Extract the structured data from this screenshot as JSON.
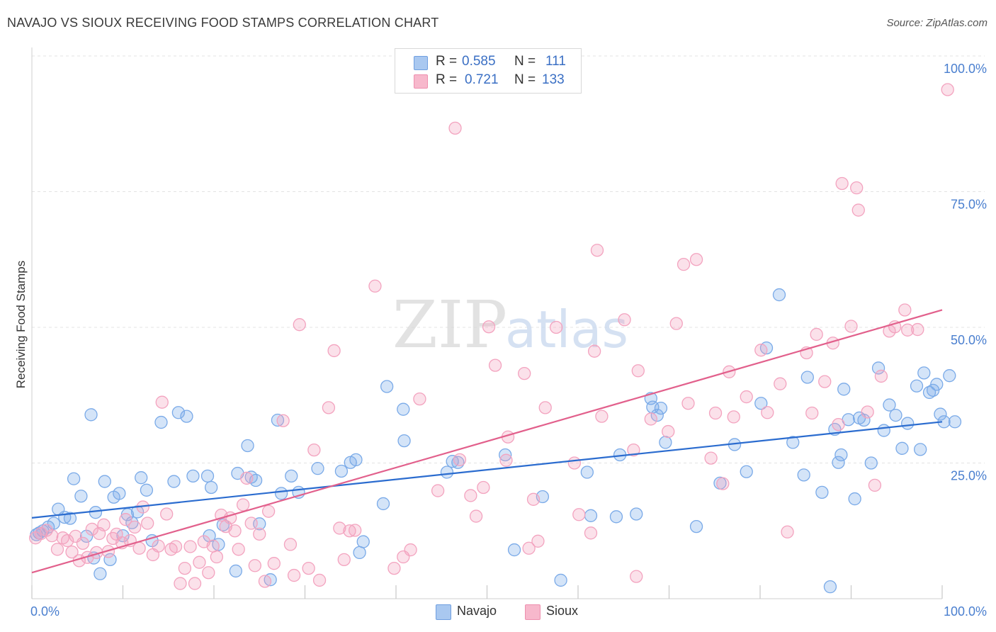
{
  "title": "NAVAJO VS SIOUX RECEIVING FOOD STAMPS CORRELATION CHART",
  "source": "Source: ZipAtlas.com",
  "watermark": {
    "zip": "ZIP",
    "atlas": "atlas"
  },
  "stats": [
    {
      "r_label": "R =",
      "r_value": "0.585",
      "n_label": "N =",
      "n_value": "111",
      "color": "#a9c8f0",
      "border": "#6f9fe0"
    },
    {
      "r_label": "R =",
      "r_value": "0.721",
      "n_label": "N =",
      "n_value": "133",
      "color": "#f7b8cc",
      "border": "#ee8fae"
    }
  ],
  "legend": [
    {
      "label": "Navajo",
      "color": "#a9c8f0",
      "border": "#6f9fe0"
    },
    {
      "label": "Sioux",
      "color": "#f7b8cc",
      "border": "#ee8fae"
    }
  ],
  "chart_data": {
    "type": "scatter",
    "title": "NAVAJO VS SIOUX RECEIVING FOOD STAMPS CORRELATION CHART",
    "xlabel": "",
    "ylabel": "Receiving Food Stamps",
    "xlim": [
      0,
      100
    ],
    "ylim": [
      0,
      100
    ],
    "x_tick_labels": [
      {
        "value": 0,
        "label": "0.0%"
      },
      {
        "value": 100,
        "label": "100.0%"
      }
    ],
    "y_tick_labels": [
      {
        "value": 25,
        "label": "25.0%"
      },
      {
        "value": 50,
        "label": "50.0%"
      },
      {
        "value": 75,
        "label": "75.0%"
      },
      {
        "value": 100,
        "label": "100.0%"
      }
    ],
    "grid": true,
    "legend_position": "bottom",
    "series": [
      {
        "name": "Navajo",
        "color": "#7aaae8",
        "trend_color": "#2b6ccf",
        "trend": [
          [
            0,
            14.9
          ],
          [
            100,
            32.6
          ]
        ],
        "points": [
          [
            0.5,
            11.8
          ],
          [
            1.2,
            12.5
          ],
          [
            1.8,
            13.2
          ],
          [
            2.4,
            13.9
          ],
          [
            2.9,
            16.5
          ],
          [
            3.6,
            15.0
          ],
          [
            4.2,
            14.8
          ],
          [
            4.6,
            22.1
          ],
          [
            5.4,
            18.9
          ],
          [
            6.0,
            11.5
          ],
          [
            6.5,
            33.9
          ],
          [
            6.8,
            7.5
          ],
          [
            7.0,
            15.9
          ],
          [
            7.5,
            4.6
          ],
          [
            8.0,
            21.6
          ],
          [
            8.6,
            7.2
          ],
          [
            9.0,
            18.7
          ],
          [
            9.6,
            19.4
          ],
          [
            10.0,
            11.6
          ],
          [
            10.5,
            15.5
          ],
          [
            11.0,
            14.0
          ],
          [
            11.6,
            16.0
          ],
          [
            12.0,
            22.3
          ],
          [
            12.6,
            20.0
          ],
          [
            13.2,
            10.7
          ],
          [
            14.2,
            32.5
          ],
          [
            15.6,
            21.6
          ],
          [
            16.1,
            34.3
          ],
          [
            17.0,
            33.6
          ],
          [
            17.7,
            22.6
          ],
          [
            19.3,
            22.6
          ],
          [
            19.5,
            11.6
          ],
          [
            19.7,
            20.5
          ],
          [
            20.5,
            10.0
          ],
          [
            21.0,
            13.6
          ],
          [
            22.4,
            5.1
          ],
          [
            22.6,
            23.1
          ],
          [
            23.7,
            28.2
          ],
          [
            24.1,
            22.4
          ],
          [
            24.6,
            21.8
          ],
          [
            25.0,
            13.8
          ],
          [
            26.2,
            3.5
          ],
          [
            27.0,
            32.9
          ],
          [
            27.4,
            19.4
          ],
          [
            28.5,
            22.6
          ],
          [
            29.3,
            19.6
          ],
          [
            31.4,
            24.0
          ],
          [
            34.0,
            23.5
          ],
          [
            35.0,
            25.1
          ],
          [
            35.6,
            25.6
          ],
          [
            36.0,
            8.5
          ],
          [
            36.4,
            10.5
          ],
          [
            38.6,
            17.5
          ],
          [
            39.0,
            39.1
          ],
          [
            40.8,
            34.9
          ],
          [
            40.9,
            29.1
          ],
          [
            45.6,
            23.3
          ],
          [
            46.2,
            25.3
          ],
          [
            46.8,
            25.1
          ],
          [
            52.0,
            26.5
          ],
          [
            53.0,
            9.0
          ],
          [
            56.1,
            18.8
          ],
          [
            58.1,
            3.4
          ],
          [
            61.0,
            23.3
          ],
          [
            61.4,
            15.3
          ],
          [
            64.2,
            15.1
          ],
          [
            64.6,
            26.5
          ],
          [
            66.4,
            15.6
          ],
          [
            68.0,
            36.9
          ],
          [
            68.2,
            35.3
          ],
          [
            68.7,
            33.8
          ],
          [
            69.1,
            35.1
          ],
          [
            69.6,
            28.8
          ],
          [
            73.0,
            13.3
          ],
          [
            75.6,
            21.3
          ],
          [
            77.2,
            28.4
          ],
          [
            78.5,
            23.4
          ],
          [
            80.1,
            36.0
          ],
          [
            80.7,
            46.2
          ],
          [
            82.1,
            56.0
          ],
          [
            83.6,
            28.8
          ],
          [
            84.8,
            22.8
          ],
          [
            85.2,
            40.8
          ],
          [
            86.8,
            19.6
          ],
          [
            87.7,
            2.2
          ],
          [
            88.2,
            31.2
          ],
          [
            88.6,
            25.1
          ],
          [
            88.9,
            26.5
          ],
          [
            89.2,
            38.6
          ],
          [
            89.7,
            33.0
          ],
          [
            90.4,
            18.4
          ],
          [
            90.9,
            33.3
          ],
          [
            91.4,
            32.9
          ],
          [
            92.2,
            25.0
          ],
          [
            93.0,
            42.5
          ],
          [
            93.6,
            31.0
          ],
          [
            94.2,
            35.7
          ],
          [
            94.9,
            33.8
          ],
          [
            95.6,
            27.7
          ],
          [
            96.2,
            32.3
          ],
          [
            97.2,
            39.2
          ],
          [
            97.6,
            27.5
          ],
          [
            98.0,
            41.6
          ],
          [
            98.6,
            38.0
          ],
          [
            99.0,
            38.4
          ],
          [
            99.4,
            39.5
          ],
          [
            99.8,
            34.0
          ],
          [
            100.2,
            32.6
          ],
          [
            100.8,
            41.1
          ],
          [
            101.4,
            32.6
          ],
          [
            0.8,
            12.1
          ]
        ]
      },
      {
        "name": "Sioux",
        "color": "#f3a3bf",
        "trend_color": "#e2608c",
        "trend": [
          [
            0,
            4.8
          ],
          [
            100,
            53.2
          ]
        ],
        "points": [
          [
            0.4,
            11.2
          ],
          [
            1.0,
            12.0
          ],
          [
            1.6,
            12.6
          ],
          [
            2.2,
            11.6
          ],
          [
            2.8,
            9.1
          ],
          [
            3.4,
            11.2
          ],
          [
            3.9,
            10.7
          ],
          [
            4.4,
            8.6
          ],
          [
            4.8,
            11.5
          ],
          [
            5.2,
            7.0
          ],
          [
            5.6,
            10.2
          ],
          [
            6.1,
            7.6
          ],
          [
            6.6,
            12.8
          ],
          [
            7.1,
            8.5
          ],
          [
            7.4,
            12.0
          ],
          [
            7.9,
            13.6
          ],
          [
            8.4,
            8.7
          ],
          [
            8.9,
            11.1
          ],
          [
            9.3,
            11.9
          ],
          [
            9.9,
            10.3
          ],
          [
            10.3,
            14.6
          ],
          [
            10.8,
            10.7
          ],
          [
            11.3,
            13.2
          ],
          [
            11.8,
            9.3
          ],
          [
            12.2,
            16.9
          ],
          [
            12.7,
            13.9
          ],
          [
            13.3,
            8.1
          ],
          [
            13.9,
            9.7
          ],
          [
            14.3,
            36.2
          ],
          [
            14.8,
            15.6
          ],
          [
            15.3,
            9.1
          ],
          [
            15.8,
            9.6
          ],
          [
            16.3,
            2.8
          ],
          [
            16.8,
            5.6
          ],
          [
            17.4,
            9.6
          ],
          [
            17.9,
            2.8
          ],
          [
            18.4,
            6.7
          ],
          [
            18.9,
            10.5
          ],
          [
            19.4,
            4.8
          ],
          [
            19.9,
            9.7
          ],
          [
            20.3,
            7.7
          ],
          [
            20.8,
            15.4
          ],
          [
            21.3,
            13.3
          ],
          [
            21.8,
            14.9
          ],
          [
            22.3,
            12.5
          ],
          [
            22.7,
            9.1
          ],
          [
            23.2,
            17.3
          ],
          [
            23.6,
            22.2
          ],
          [
            24.1,
            13.9
          ],
          [
            24.5,
            6.1
          ],
          [
            25.0,
            11.9
          ],
          [
            25.6,
            3.2
          ],
          [
            26.0,
            16.1
          ],
          [
            26.6,
            6.5
          ],
          [
            27.6,
            32.8
          ],
          [
            28.4,
            10.0
          ],
          [
            28.8,
            4.3
          ],
          [
            29.4,
            50.5
          ],
          [
            30.4,
            5.6
          ],
          [
            31.0,
            27.4
          ],
          [
            31.6,
            3.4
          ],
          [
            32.6,
            35.2
          ],
          [
            33.2,
            45.7
          ],
          [
            33.8,
            13.0
          ],
          [
            34.3,
            7.2
          ],
          [
            34.9,
            12.5
          ],
          [
            35.5,
            12.6
          ],
          [
            37.7,
            57.6
          ],
          [
            39.8,
            5.6
          ],
          [
            40.8,
            7.7
          ],
          [
            41.6,
            9.0
          ],
          [
            42.6,
            36.8
          ],
          [
            44.6,
            19.9
          ],
          [
            46.5,
            86.7
          ],
          [
            47.0,
            25.6
          ],
          [
            48.2,
            19.0
          ],
          [
            48.8,
            15.2
          ],
          [
            49.6,
            20.5
          ],
          [
            50.2,
            50.1
          ],
          [
            50.9,
            43.0
          ],
          [
            52.1,
            25.5
          ],
          [
            52.3,
            29.8
          ],
          [
            54.1,
            41.5
          ],
          [
            54.6,
            9.3
          ],
          [
            55.1,
            18.3
          ],
          [
            55.6,
            10.6
          ],
          [
            56.4,
            35.2
          ],
          [
            57.6,
            50.0
          ],
          [
            59.6,
            25.0
          ],
          [
            60.1,
            15.5
          ],
          [
            61.4,
            12.1
          ],
          [
            61.8,
            45.6
          ],
          [
            62.1,
            64.2
          ],
          [
            62.6,
            33.6
          ],
          [
            65.1,
            51.4
          ],
          [
            66.1,
            27.4
          ],
          [
            66.4,
            4.1
          ],
          [
            66.6,
            42.0
          ],
          [
            68.0,
            33.1
          ],
          [
            69.9,
            30.8
          ],
          [
            70.8,
            50.7
          ],
          [
            71.6,
            61.6
          ],
          [
            72.1,
            36.0
          ],
          [
            73.0,
            62.5
          ],
          [
            74.6,
            25.9
          ],
          [
            75.1,
            34.2
          ],
          [
            75.9,
            21.2
          ],
          [
            76.6,
            41.8
          ],
          [
            77.1,
            33.5
          ],
          [
            78.5,
            37.2
          ],
          [
            80.1,
            45.8
          ],
          [
            80.8,
            34.3
          ],
          [
            82.2,
            39.6
          ],
          [
            83.0,
            12.3
          ],
          [
            85.1,
            45.3
          ],
          [
            85.7,
            34.2
          ],
          [
            86.2,
            48.7
          ],
          [
            87.1,
            40.0
          ],
          [
            88.0,
            47.1
          ],
          [
            88.6,
            32.1
          ],
          [
            89.0,
            76.5
          ],
          [
            90.0,
            50.2
          ],
          [
            90.6,
            75.7
          ],
          [
            90.8,
            71.6
          ],
          [
            91.8,
            34.4
          ],
          [
            92.6,
            20.9
          ],
          [
            93.3,
            41.0
          ],
          [
            94.2,
            49.3
          ],
          [
            94.8,
            50.1
          ],
          [
            95.9,
            53.2
          ],
          [
            96.2,
            49.5
          ],
          [
            97.3,
            49.6
          ],
          [
            100.6,
            93.8
          ]
        ]
      }
    ]
  }
}
